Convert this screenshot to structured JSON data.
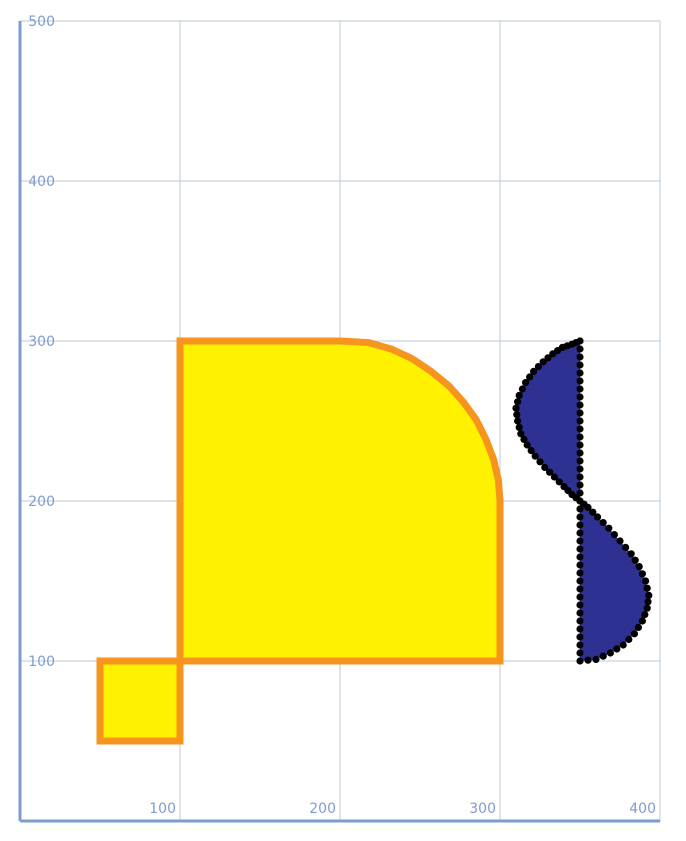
{
  "chart_data": {
    "type": "area",
    "title": "",
    "xlabel": "",
    "ylabel": "",
    "xlim": [
      0,
      400
    ],
    "ylim": [
      0,
      500
    ],
    "x_ticks": [
      "100",
      "200",
      "300",
      "400"
    ],
    "y_ticks": [
      "100",
      "200",
      "300",
      "400",
      "500"
    ],
    "grid": true,
    "colors": {
      "yellow_fill": "#fff200",
      "orange_stroke": "#f7941d",
      "blue_fill": "#2e3192",
      "marker": "#000000",
      "axis": "#7f9cd0",
      "grid": "#b9c8d8"
    },
    "series": [
      {
        "shape": "small-square",
        "points": [
          [
            50,
            50
          ],
          [
            100,
            50
          ],
          [
            100,
            100
          ],
          [
            50,
            100
          ]
        ]
      },
      {
        "shape": "rounded-quarter",
        "points": [
          [
            100,
            100
          ],
          [
            300,
            100
          ],
          [
            300,
            200
          ],
          [
            299,
            213
          ],
          [
            296,
            226
          ],
          [
            291,
            239
          ],
          [
            285,
            251
          ],
          [
            277,
            262
          ],
          [
            268,
            272
          ],
          [
            257,
            281
          ],
          [
            245,
            289
          ],
          [
            232,
            295
          ],
          [
            218,
            299
          ],
          [
            200,
            300
          ],
          [
            100,
            300
          ]
        ]
      },
      {
        "shape": "upper-lobe",
        "markers": true,
        "points": [
          [
            350,
            300
          ],
          [
            345,
            298
          ],
          [
            339,
            296
          ],
          [
            333,
            292
          ],
          [
            327,
            287
          ],
          [
            321,
            281
          ],
          [
            316,
            274
          ],
          [
            312,
            266
          ],
          [
            310,
            258
          ],
          [
            311,
            250
          ],
          [
            313,
            242
          ],
          [
            317,
            235
          ],
          [
            322,
            228
          ],
          [
            328,
            221
          ],
          [
            334,
            215
          ],
          [
            340,
            209
          ],
          [
            345,
            204
          ],
          [
            350,
            200
          ],
          [
            350,
            210
          ],
          [
            350,
            220
          ],
          [
            350,
            230
          ],
          [
            350,
            240
          ],
          [
            350,
            250
          ],
          [
            350,
            260
          ],
          [
            350,
            270
          ],
          [
            350,
            280
          ],
          [
            350,
            290
          ]
        ]
      },
      {
        "shape": "lower-lobe",
        "markers": true,
        "points": [
          [
            350,
            200
          ],
          [
            355,
            196
          ],
          [
            361,
            190
          ],
          [
            368,
            183
          ],
          [
            375,
            175
          ],
          [
            382,
            167
          ],
          [
            387,
            159
          ],
          [
            391,
            150
          ],
          [
            393,
            141
          ],
          [
            392,
            133
          ],
          [
            389,
            125
          ],
          [
            384,
            117
          ],
          [
            377,
            110
          ],
          [
            369,
            105
          ],
          [
            360,
            101
          ],
          [
            350,
            100
          ],
          [
            350,
            110
          ],
          [
            350,
            120
          ],
          [
            350,
            130
          ],
          [
            350,
            140
          ],
          [
            350,
            150
          ],
          [
            350,
            160
          ],
          [
            350,
            170
          ],
          [
            350,
            180
          ],
          [
            350,
            190
          ]
        ]
      }
    ]
  }
}
